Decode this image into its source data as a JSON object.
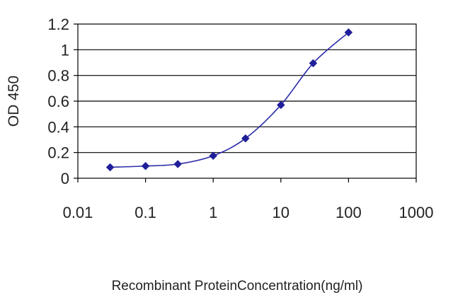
{
  "chart_data": {
    "type": "scatter",
    "title": "",
    "xlabel": "Recombinant ProteinConcentration(ng/ml)",
    "ylabel": "OD 450",
    "x_scale": "log",
    "xlim": [
      0.01,
      1000
    ],
    "ylim": [
      0,
      1.2
    ],
    "grid": "horizontal",
    "x_ticks": [
      "0.01",
      "0.1",
      "1",
      "10",
      "100",
      "1000"
    ],
    "y_ticks": [
      "0",
      "0.2",
      "0.4",
      "0.6",
      "0.8",
      "1",
      "1.2"
    ],
    "series": [
      {
        "x": [
          0.03,
          0.1,
          0.3,
          1,
          3,
          10,
          30,
          100
        ],
        "y": [
          0.085,
          0.095,
          0.11,
          0.175,
          0.31,
          0.57,
          0.895,
          1.135
        ]
      }
    ],
    "colors": {
      "series": "#2b2ba8",
      "marker": "#1f1f9a",
      "axis": "#000000"
    }
  }
}
